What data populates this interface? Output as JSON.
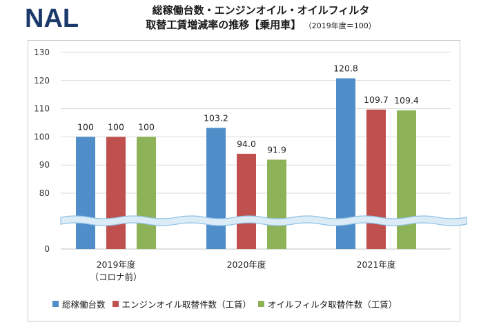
{
  "logo": {
    "text": "NAL"
  },
  "title": {
    "line1": "総稼働台数・エンジンオイル・オイルフィルタ",
    "line2": "取替工賃増減率の推移【乗用車】",
    "base_note": "（2019年度＝100）"
  },
  "chart_data": {
    "type": "bar",
    "categories": [
      "2019年度\n（コロナ前）",
      "2020年度",
      "2021年度"
    ],
    "series": [
      {
        "name": "総稼働台数",
        "color": "#4f8ec9",
        "values": [
          100,
          103.2,
          120.8
        ],
        "labels": [
          "100",
          "103.2",
          "120.8"
        ]
      },
      {
        "name": "エンジンオイル取替件数（工賃）",
        "color": "#c0504d",
        "values": [
          100,
          94.0,
          109.7
        ],
        "labels": [
          "100",
          "94.0",
          "109.7"
        ]
      },
      {
        "name": "オイルフィルタ取替件数（工賃）",
        "color": "#8db257",
        "values": [
          100,
          91.9,
          109.4
        ],
        "labels": [
          "100",
          "91.9",
          "109.4"
        ]
      }
    ],
    "y_ticks": [
      "0",
      "80",
      "90",
      "100",
      "110",
      "120",
      "130"
    ],
    "ylim": [
      0,
      130
    ],
    "axis_break": "between 0 and 80",
    "grid": true,
    "legend_position": "bottom"
  }
}
